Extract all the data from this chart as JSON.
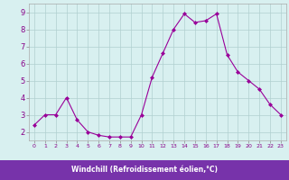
{
  "x": [
    0,
    1,
    2,
    3,
    4,
    5,
    6,
    7,
    8,
    9,
    10,
    11,
    12,
    13,
    14,
    15,
    16,
    17,
    18,
    19,
    20,
    21,
    22,
    23
  ],
  "y": [
    2.4,
    3.0,
    3.0,
    4.0,
    2.7,
    2.0,
    1.8,
    1.7,
    1.7,
    1.7,
    3.0,
    5.2,
    6.6,
    8.0,
    8.9,
    8.4,
    8.5,
    8.9,
    6.5,
    5.5,
    5.0,
    4.5,
    3.6,
    3.0
  ],
  "line_color": "#990099",
  "marker": "D",
  "marker_size": 2,
  "bg_color": "#d8f0f0",
  "grid_color": "#b0d0d0",
  "xlabel": "Windchill (Refroidissement éolien,°C)",
  "xlabel_bg": "#7733aa",
  "xlabel_color": "#ffffff",
  "yticks": [
    2,
    3,
    4,
    5,
    6,
    7,
    8,
    9
  ],
  "xlim": [
    -0.5,
    23.5
  ],
  "ylim": [
    1.5,
    9.5
  ]
}
